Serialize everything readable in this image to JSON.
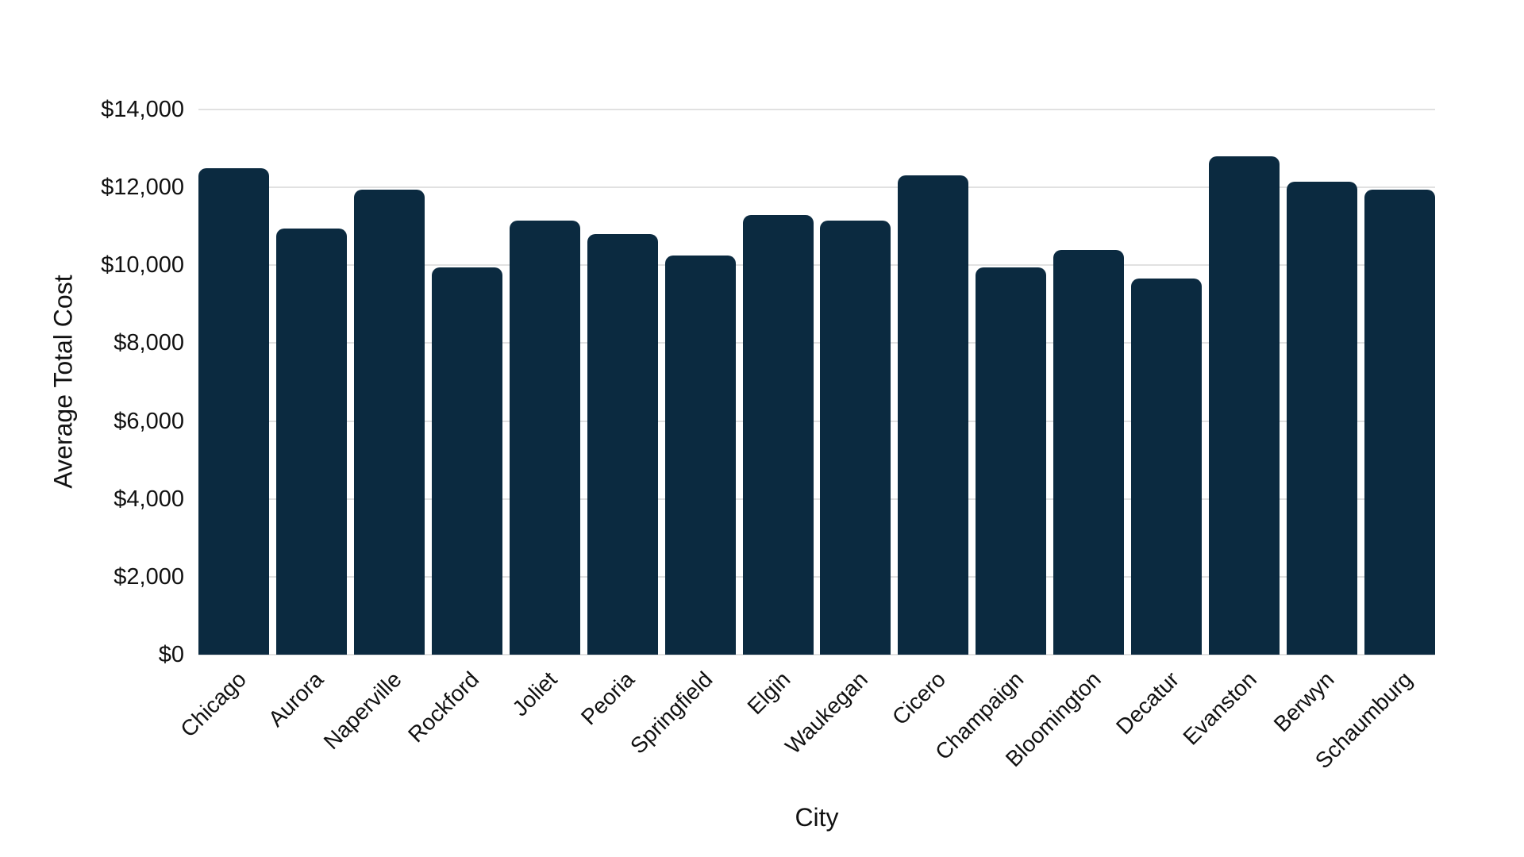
{
  "chart_data": {
    "type": "bar",
    "title": "",
    "xlabel": "City",
    "ylabel": "Average Total Cost",
    "categories": [
      "Chicago",
      "Aurora",
      "Naperville",
      "Rockford",
      "Joliet",
      "Peoria",
      "Springfield",
      "Elgin",
      "Waukegan",
      "Cicero",
      "Champaign",
      "Bloomington",
      "Decatur",
      "Evanston",
      "Berwyn",
      "Schaumburg"
    ],
    "values": [
      12500,
      10950,
      11950,
      9950,
      11150,
      10800,
      10250,
      11300,
      11150,
      12300,
      9950,
      10400,
      9650,
      12800,
      12150,
      11950
    ],
    "ylim": [
      0,
      14000
    ],
    "ytick_step": 2000,
    "ytick_labels": [
      "$0",
      "$2,000",
      "$4,000",
      "$6,000",
      "$8,000",
      "$10,000",
      "$12,000",
      "$14,000"
    ],
    "bar_color": "#0b2a40",
    "gridline_color": "#e1e1e1",
    "text_color": "#111111",
    "background_color": "#ffffff",
    "grid": "horizontal gridlines on, behind bars",
    "legend_position": "none",
    "x_tick_rotation_deg": 45
  }
}
